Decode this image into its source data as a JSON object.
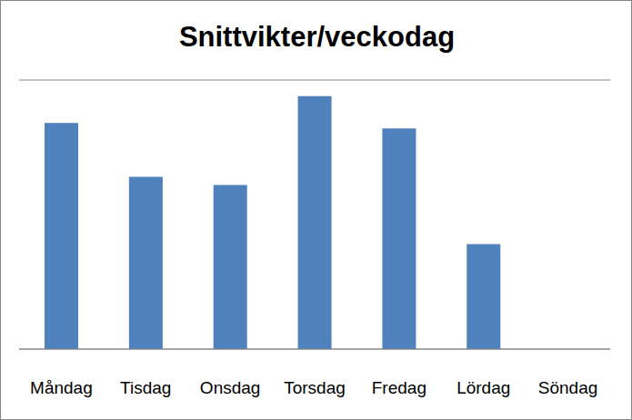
{
  "chart_data": {
    "type": "bar",
    "title": "Snittvikter/veckodag",
    "categories": [
      "Måndag",
      "Tisdag",
      "Onsdag",
      "Torsdag",
      "Fredag",
      "Lördag",
      "Söndag"
    ],
    "values": [
      8.4,
      6.4,
      6.1,
      9.4,
      8.2,
      3.9,
      0
    ],
    "color": "#4f81bd",
    "ylim": [
      0,
      10
    ],
    "yticks": [
      0,
      1,
      2,
      3,
      4,
      5,
      6,
      7,
      8,
      9,
      10
    ],
    "grid": true,
    "tick_labels": "x"
  }
}
